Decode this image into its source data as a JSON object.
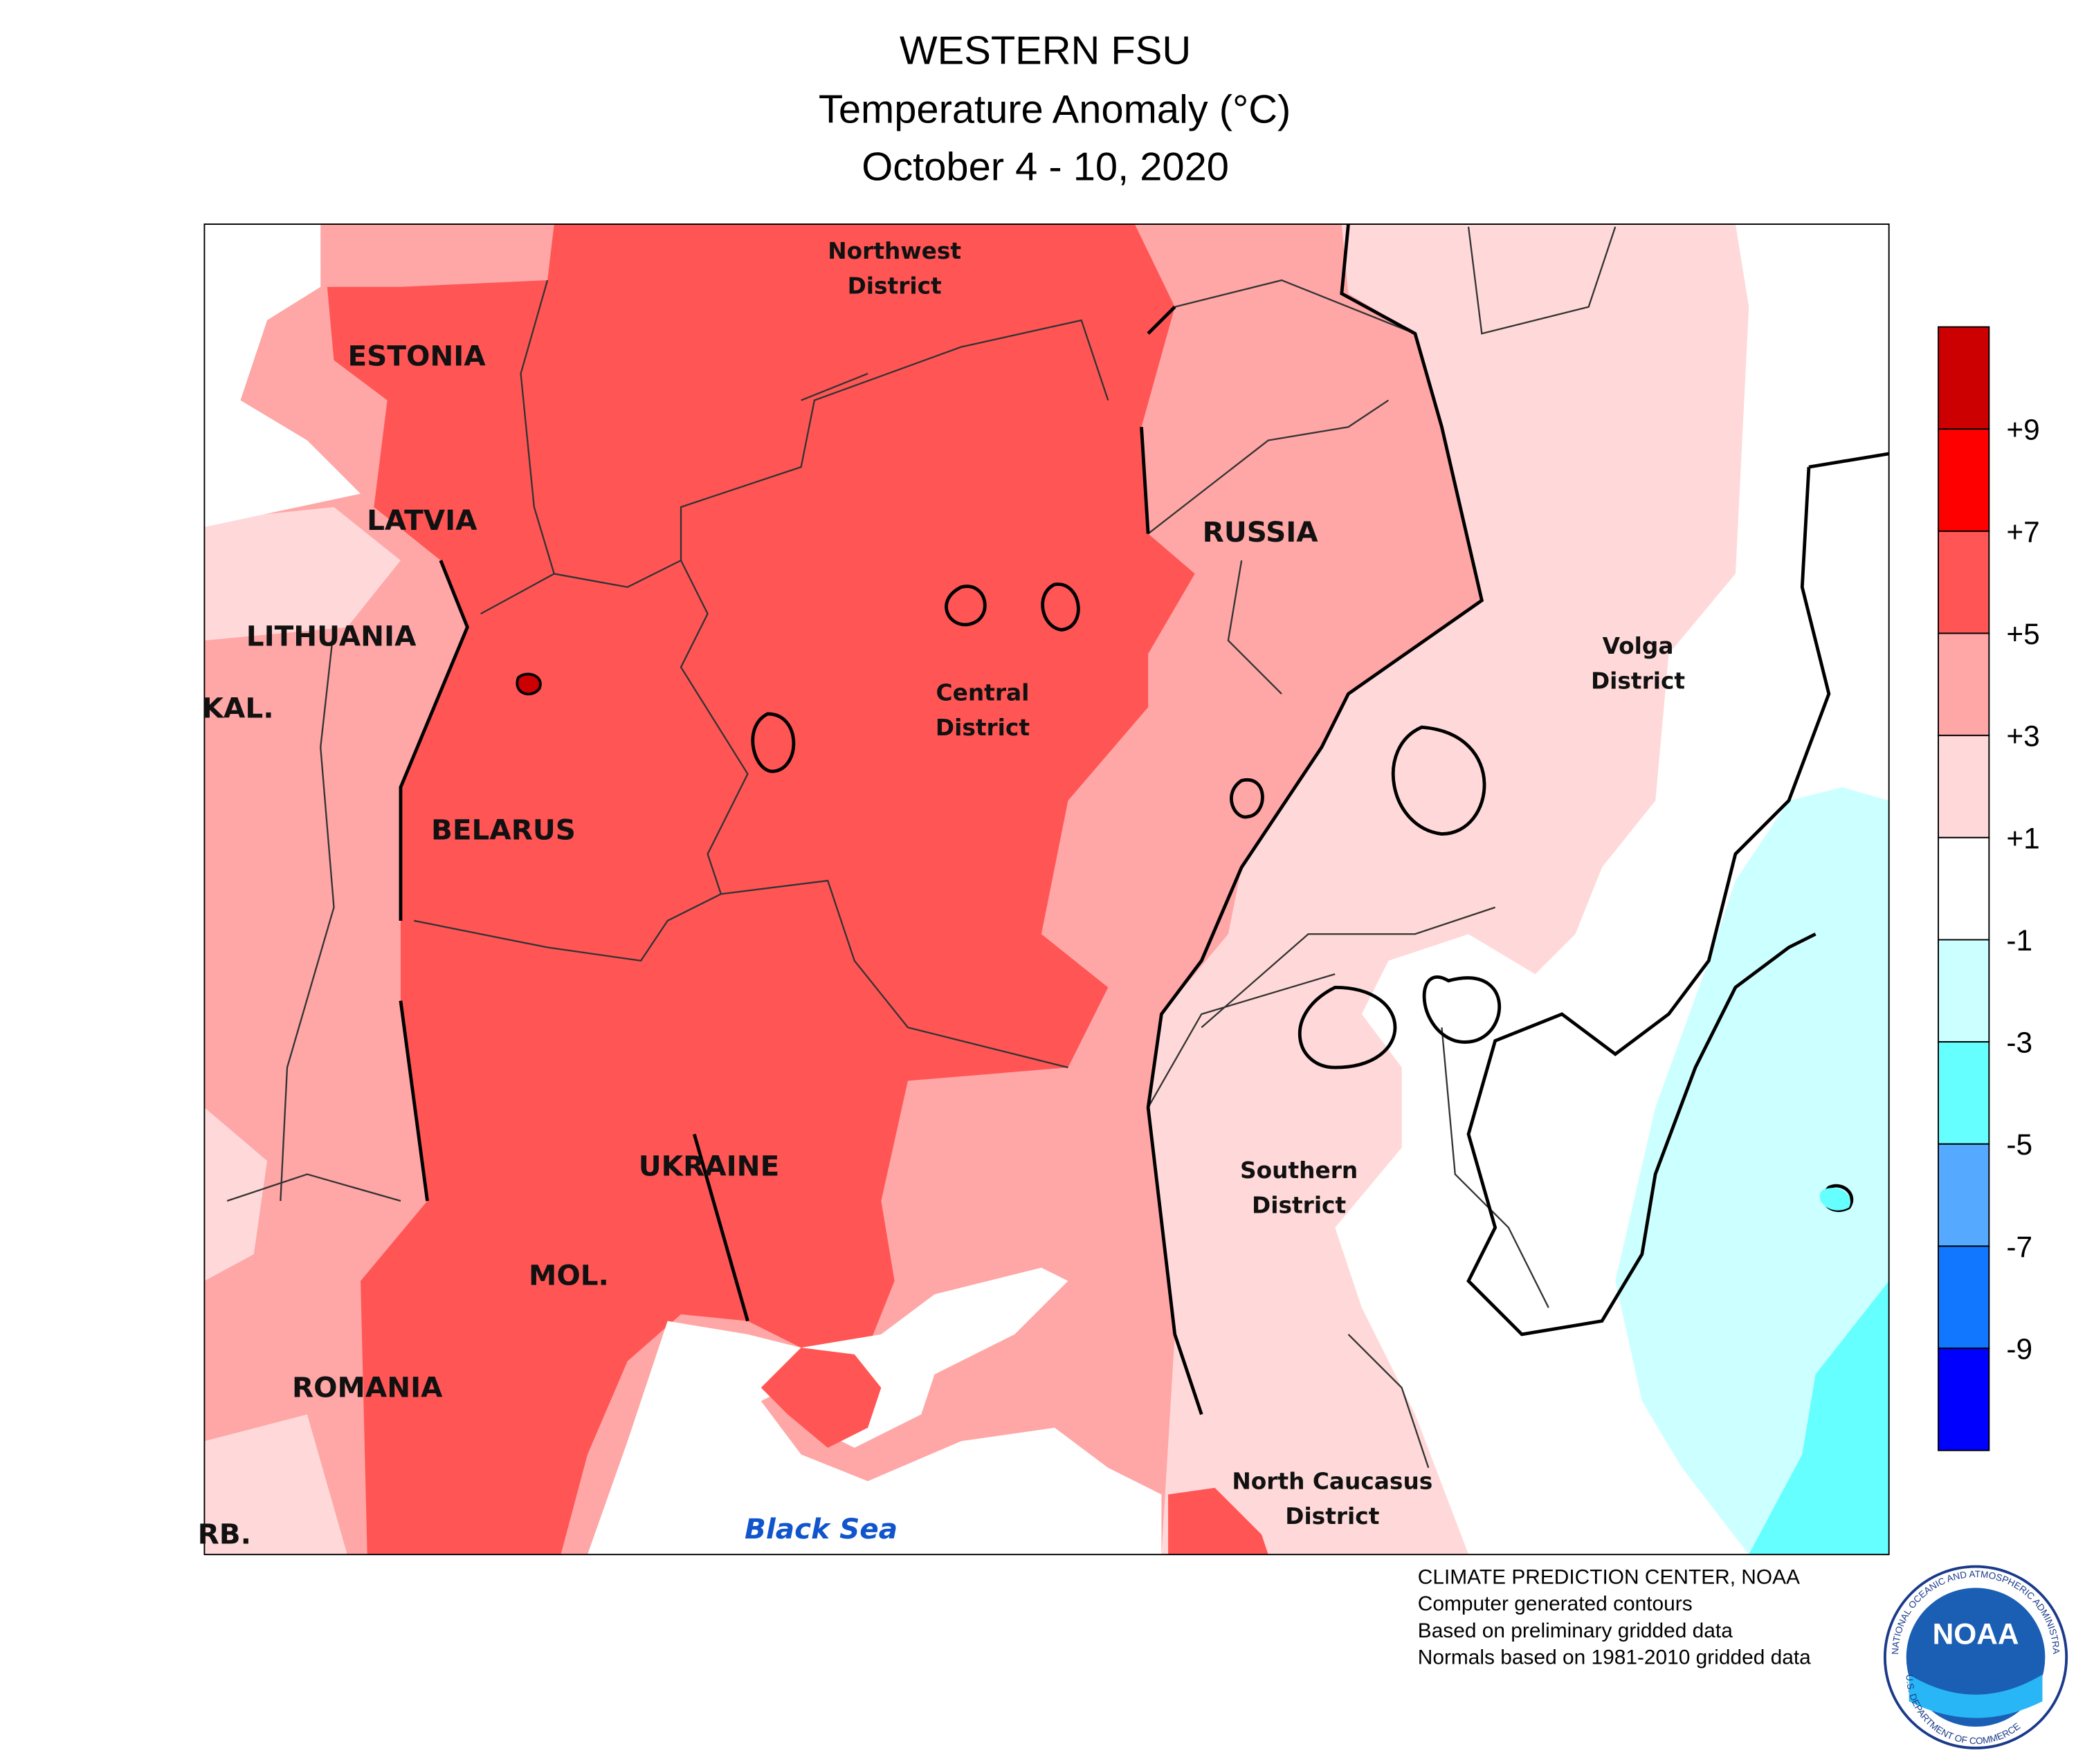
{
  "header": {
    "title": "WESTERN FSU",
    "subtitle": "Temperature Anomaly (°C)",
    "date": "October 4 - 10, 2020"
  },
  "map_labels": [
    "Northwest",
    "District",
    "ESTONIA",
    "LATVIA",
    "LITHUANIA",
    "KAL.",
    "BELARUS",
    "Central",
    "District",
    "RUSSIA",
    "Volga",
    "District",
    "UKRAINE",
    "MOL.",
    "ROMANIA",
    "Southern",
    "District",
    "North Caucasus",
    "District",
    "Black Sea",
    "RB."
  ],
  "legend": {
    "labels": [
      "+9",
      "+7",
      "+5",
      "+3",
      "+1",
      "-1",
      "-3",
      "-5",
      "-7",
      "-9"
    ],
    "colors": [
      "#cc0000",
      "#ff0000",
      "#ff5555",
      "#ffa6a6",
      "#ffd9d9",
      "#ffffff",
      "#ccffff",
      "#66ffff",
      "#55aaff",
      "#1177ff",
      "#0000ff"
    ]
  },
  "footer": [
    "CLIMATE PREDICTION CENTER, NOAA",
    "Computer generated contours",
    "Based on preliminary gridded data",
    "Normals based on 1981-2010 gridded data"
  ],
  "logo": {
    "text": "NOAA",
    "ring_top": "NATIONAL OCEANIC AND ATMOSPHERIC ADMINISTRATION",
    "ring_bottom": "U.S. DEPARTMENT OF COMMERCE"
  }
}
